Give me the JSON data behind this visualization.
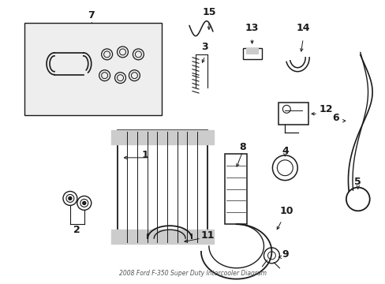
{
  "title": "2008 Ford F-350 Super Duty Intercooler Diagram",
  "background_color": "#ffffff",
  "line_color": "#1a1a1a",
  "figsize": [
    4.89,
    3.6
  ],
  "dpi": 100
}
